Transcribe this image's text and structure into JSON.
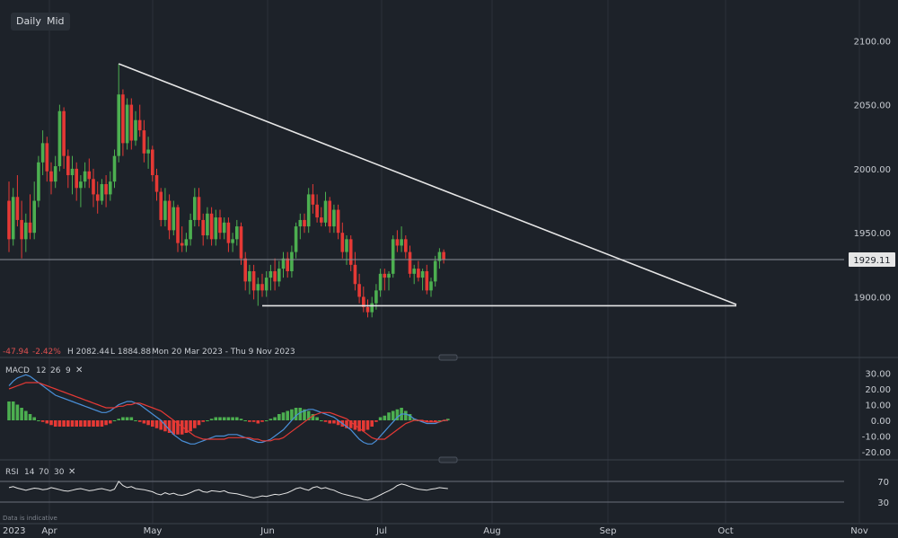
{
  "toolbar": {
    "timeframe_label": "Daily",
    "price_type_label": "Mid"
  },
  "colors": {
    "background": "#1d2229",
    "up": "#4caf50",
    "down": "#e53935",
    "trendline": "#e6e6e6",
    "macd_line": "#4a90d9",
    "signal_line": "#e53935",
    "rsi_line": "#e6e6e6",
    "axis_text": "#c8ccd2"
  },
  "info": {
    "change": "-47.94",
    "change_pct": "-2.42%",
    "high": "H 2082.44",
    "low": "L 1884.88",
    "range": "Mon 20 Mar 2023 - Thu 9 Nov 2023"
  },
  "price_label": "1929.11",
  "disclaimer": "Data is indicative",
  "macd": {
    "label": "MACD",
    "params": [
      "12",
      "26",
      "9"
    ]
  },
  "rsi": {
    "label": "RSI",
    "params": [
      "14",
      "70",
      "30"
    ]
  },
  "chart_data": [
    {
      "type": "candlestick",
      "y_ticks": [
        1900,
        1950,
        2000,
        2050,
        2100
      ],
      "ylim": [
        1860,
        2130
      ],
      "x_ticks": [
        "Apr",
        "May",
        "Jun",
        "Jul",
        "Aug",
        "Sep",
        "Oct",
        "Nov"
      ],
      "x_year_label": "2023",
      "last_price": 1929.11,
      "candles": [
        {
          "o": 1975,
          "h": 1990,
          "l": 1935,
          "c": 1945
        },
        {
          "o": 1945,
          "h": 1985,
          "l": 1940,
          "c": 1978
        },
        {
          "o": 1978,
          "h": 1995,
          "l": 1955,
          "c": 1960
        },
        {
          "o": 1960,
          "h": 1975,
          "l": 1930,
          "c": 1945
        },
        {
          "o": 1945,
          "h": 1965,
          "l": 1935,
          "c": 1958
        },
        {
          "o": 1958,
          "h": 1980,
          "l": 1945,
          "c": 1950
        },
        {
          "o": 1950,
          "h": 1990,
          "l": 1945,
          "c": 1975
        },
        {
          "o": 1975,
          "h": 2010,
          "l": 1970,
          "c": 2005
        },
        {
          "o": 2005,
          "h": 2030,
          "l": 1995,
          "c": 2020
        },
        {
          "o": 2020,
          "h": 2025,
          "l": 1990,
          "c": 1998
        },
        {
          "o": 1998,
          "h": 2005,
          "l": 1980,
          "c": 1990
        },
        {
          "o": 1990,
          "h": 2010,
          "l": 1985,
          "c": 2002
        },
        {
          "o": 2002,
          "h": 2050,
          "l": 1998,
          "c": 2045
        },
        {
          "o": 2045,
          "h": 2048,
          "l": 2000,
          "c": 2010
        },
        {
          "o": 2010,
          "h": 2015,
          "l": 1985,
          "c": 1995
        },
        {
          "o": 1995,
          "h": 2010,
          "l": 1980,
          "c": 2000
        },
        {
          "o": 2000,
          "h": 2005,
          "l": 1975,
          "c": 1985
        },
        {
          "o": 1985,
          "h": 1995,
          "l": 1970,
          "c": 1990
        },
        {
          "o": 1990,
          "h": 2005,
          "l": 1985,
          "c": 1998
        },
        {
          "o": 1998,
          "h": 2008,
          "l": 1985,
          "c": 1992
        },
        {
          "o": 1992,
          "h": 2000,
          "l": 1970,
          "c": 1980
        },
        {
          "o": 1980,
          "h": 1990,
          "l": 1965,
          "c": 1975
        },
        {
          "o": 1975,
          "h": 1992,
          "l": 1972,
          "c": 1988
        },
        {
          "o": 1988,
          "h": 1995,
          "l": 1970,
          "c": 1980
        },
        {
          "o": 1980,
          "h": 1998,
          "l": 1975,
          "c": 1990
        },
        {
          "o": 1990,
          "h": 2015,
          "l": 1985,
          "c": 2010
        },
        {
          "o": 2010,
          "h": 2082,
          "l": 2005,
          "c": 2058
        },
        {
          "o": 2058,
          "h": 2062,
          "l": 2010,
          "c": 2020
        },
        {
          "o": 2020,
          "h": 2055,
          "l": 2015,
          "c": 2050
        },
        {
          "o": 2050,
          "h": 2055,
          "l": 2015,
          "c": 2022
        },
        {
          "o": 2022,
          "h": 2045,
          "l": 2018,
          "c": 2038
        },
        {
          "o": 2038,
          "h": 2050,
          "l": 2025,
          "c": 2030
        },
        {
          "o": 2030,
          "h": 2038,
          "l": 2005,
          "c": 2012
        },
        {
          "o": 2012,
          "h": 2025,
          "l": 2000,
          "c": 2015
        },
        {
          "o": 2015,
          "h": 2018,
          "l": 1990,
          "c": 1995
        },
        {
          "o": 1995,
          "h": 2000,
          "l": 1975,
          "c": 1982
        },
        {
          "o": 1982,
          "h": 1985,
          "l": 1955,
          "c": 1960
        },
        {
          "o": 1960,
          "h": 1985,
          "l": 1955,
          "c": 1975
        },
        {
          "o": 1975,
          "h": 1980,
          "l": 1945,
          "c": 1952
        },
        {
          "o": 1952,
          "h": 1975,
          "l": 1948,
          "c": 1970
        },
        {
          "o": 1970,
          "h": 1972,
          "l": 1935,
          "c": 1942
        },
        {
          "o": 1942,
          "h": 1955,
          "l": 1935,
          "c": 1940
        },
        {
          "o": 1940,
          "h": 1950,
          "l": 1935,
          "c": 1945
        },
        {
          "o": 1945,
          "h": 1965,
          "l": 1940,
          "c": 1960
        },
        {
          "o": 1960,
          "h": 1985,
          "l": 1955,
          "c": 1978
        },
        {
          "o": 1978,
          "h": 1985,
          "l": 1955,
          "c": 1960
        },
        {
          "o": 1960,
          "h": 1965,
          "l": 1940,
          "c": 1948
        },
        {
          "o": 1948,
          "h": 1970,
          "l": 1945,
          "c": 1965
        },
        {
          "o": 1965,
          "h": 1970,
          "l": 1940,
          "c": 1945
        },
        {
          "o": 1945,
          "h": 1968,
          "l": 1940,
          "c": 1962
        },
        {
          "o": 1962,
          "h": 1968,
          "l": 1945,
          "c": 1950
        },
        {
          "o": 1950,
          "h": 1962,
          "l": 1945,
          "c": 1958
        },
        {
          "o": 1958,
          "h": 1962,
          "l": 1935,
          "c": 1942
        },
        {
          "o": 1942,
          "h": 1950,
          "l": 1935,
          "c": 1945
        },
        {
          "o": 1945,
          "h": 1960,
          "l": 1940,
          "c": 1955
        },
        {
          "o": 1955,
          "h": 1958,
          "l": 1925,
          "c": 1930
        },
        {
          "o": 1930,
          "h": 1935,
          "l": 1905,
          "c": 1912
        },
        {
          "o": 1912,
          "h": 1925,
          "l": 1902,
          "c": 1920
        },
        {
          "o": 1920,
          "h": 1925,
          "l": 1898,
          "c": 1905
        },
        {
          "o": 1905,
          "h": 1915,
          "l": 1893,
          "c": 1910
        },
        {
          "o": 1910,
          "h": 1918,
          "l": 1900,
          "c": 1905
        },
        {
          "o": 1905,
          "h": 1920,
          "l": 1900,
          "c": 1915
        },
        {
          "o": 1915,
          "h": 1925,
          "l": 1905,
          "c": 1920
        },
        {
          "o": 1920,
          "h": 1930,
          "l": 1905,
          "c": 1912
        },
        {
          "o": 1912,
          "h": 1928,
          "l": 1908,
          "c": 1922
        },
        {
          "o": 1922,
          "h": 1935,
          "l": 1915,
          "c": 1930
        },
        {
          "o": 1930,
          "h": 1935,
          "l": 1915,
          "c": 1920
        },
        {
          "o": 1920,
          "h": 1940,
          "l": 1915,
          "c": 1935
        },
        {
          "o": 1935,
          "h": 1958,
          "l": 1930,
          "c": 1955
        },
        {
          "o": 1955,
          "h": 1965,
          "l": 1945,
          "c": 1960
        },
        {
          "o": 1960,
          "h": 1965,
          "l": 1950,
          "c": 1955
        },
        {
          "o": 1955,
          "h": 1985,
          "l": 1950,
          "c": 1980
        },
        {
          "o": 1980,
          "h": 1988,
          "l": 1965,
          "c": 1972
        },
        {
          "o": 1972,
          "h": 1980,
          "l": 1958,
          "c": 1962
        },
        {
          "o": 1962,
          "h": 1970,
          "l": 1955,
          "c": 1958
        },
        {
          "o": 1958,
          "h": 1982,
          "l": 1955,
          "c": 1975
        },
        {
          "o": 1975,
          "h": 1978,
          "l": 1950,
          "c": 1955
        },
        {
          "o": 1955,
          "h": 1972,
          "l": 1950,
          "c": 1968
        },
        {
          "o": 1968,
          "h": 1972,
          "l": 1945,
          "c": 1950
        },
        {
          "o": 1950,
          "h": 1958,
          "l": 1930,
          "c": 1935
        },
        {
          "o": 1935,
          "h": 1948,
          "l": 1925,
          "c": 1945
        },
        {
          "o": 1945,
          "h": 1948,
          "l": 1920,
          "c": 1925
        },
        {
          "o": 1925,
          "h": 1935,
          "l": 1905,
          "c": 1910
        },
        {
          "o": 1910,
          "h": 1918,
          "l": 1895,
          "c": 1900
        },
        {
          "o": 1900,
          "h": 1908,
          "l": 1888,
          "c": 1892
        },
        {
          "o": 1892,
          "h": 1898,
          "l": 1884,
          "c": 1888
        },
        {
          "o": 1888,
          "h": 1900,
          "l": 1884,
          "c": 1895
        },
        {
          "o": 1895,
          "h": 1910,
          "l": 1890,
          "c": 1905
        },
        {
          "o": 1905,
          "h": 1922,
          "l": 1900,
          "c": 1918
        },
        {
          "o": 1918,
          "h": 1922,
          "l": 1905,
          "c": 1915
        },
        {
          "o": 1915,
          "h": 1920,
          "l": 1905,
          "c": 1918
        },
        {
          "o": 1918,
          "h": 1948,
          "l": 1915,
          "c": 1945
        },
        {
          "o": 1945,
          "h": 1952,
          "l": 1935,
          "c": 1940
        },
        {
          "o": 1940,
          "h": 1955,
          "l": 1935,
          "c": 1945
        },
        {
          "o": 1945,
          "h": 1948,
          "l": 1930,
          "c": 1935
        },
        {
          "o": 1935,
          "h": 1940,
          "l": 1915,
          "c": 1918
        },
        {
          "o": 1918,
          "h": 1925,
          "l": 1910,
          "c": 1922
        },
        {
          "o": 1922,
          "h": 1928,
          "l": 1912,
          "c": 1915
        },
        {
          "o": 1915,
          "h": 1922,
          "l": 1905,
          "c": 1920
        },
        {
          "o": 1920,
          "h": 1925,
          "l": 1902,
          "c": 1905
        },
        {
          "o": 1905,
          "h": 1915,
          "l": 1900,
          "c": 1912
        },
        {
          "o": 1912,
          "h": 1932,
          "l": 1908,
          "c": 1928
        },
        {
          "o": 1928,
          "h": 1938,
          "l": 1922,
          "c": 1935
        },
        {
          "o": 1935,
          "h": 1937,
          "l": 1926,
          "c": 1929
        }
      ],
      "trendlines": [
        {
          "from_index": 26,
          "from_value": 2082,
          "to_label": "Oct",
          "to_offset_days": 10,
          "to_value": 1894
        },
        {
          "from_index": 60,
          "from_value": 1893,
          "to_label": "Oct",
          "to_offset_days": 10,
          "to_value": 1893
        }
      ],
      "horizontal_line": 1929.11
    },
    {
      "type": "macd",
      "y_ticks": [
        30,
        20,
        10,
        0,
        -10,
        -20
      ],
      "ylim": [
        -25,
        35
      ],
      "macd": [
        22,
        25,
        27,
        28,
        29,
        28,
        26,
        24,
        22,
        20,
        18,
        16,
        15,
        14,
        13,
        12,
        11,
        10,
        9,
        8,
        7,
        6,
        5,
        5,
        6,
        8,
        10,
        11,
        12,
        12,
        11,
        10,
        8,
        6,
        4,
        2,
        0,
        -3,
        -6,
        -9,
        -11,
        -13,
        -14,
        -15,
        -15,
        -14,
        -13,
        -12,
        -11,
        -10,
        -10,
        -10,
        -9,
        -9,
        -9,
        -10,
        -11,
        -12,
        -13,
        -14,
        -14,
        -13,
        -12,
        -10,
        -8,
        -6,
        -3,
        0,
        3,
        5,
        6,
        7,
        7,
        6,
        5,
        4,
        3,
        2,
        0,
        -2,
        -4,
        -6,
        -9,
        -12,
        -14,
        -15,
        -15,
        -13,
        -10,
        -7,
        -4,
        -1,
        2,
        4,
        4,
        3,
        1,
        0,
        -1,
        -2,
        -2,
        -2,
        -1,
        0,
        0
      ],
      "signal": [
        20,
        21,
        22,
        23,
        24,
        24,
        24,
        24,
        23,
        22,
        21,
        20,
        19,
        18,
        17,
        16,
        15,
        14,
        13,
        12,
        11,
        10,
        9,
        8,
        8,
        8,
        9,
        9,
        10,
        10,
        11,
        11,
        10,
        9,
        8,
        7,
        6,
        4,
        2,
        0,
        -2,
        -4,
        -6,
        -8,
        -10,
        -11,
        -12,
        -12,
        -12,
        -12,
        -12,
        -12,
        -11,
        -11,
        -11,
        -11,
        -11,
        -11,
        -12,
        -12,
        -13,
        -13,
        -13,
        -12,
        -12,
        -11,
        -9,
        -7,
        -5,
        -3,
        -1,
        1,
        3,
        4,
        5,
        5,
        5,
        4,
        3,
        2,
        1,
        -1,
        -3,
        -5,
        -7,
        -9,
        -11,
        -12,
        -12,
        -12,
        -10,
        -8,
        -6,
        -4,
        -2,
        -1,
        0,
        0,
        0,
        -1,
        -1,
        -1,
        -1,
        0,
        0
      ],
      "histogram": [
        12,
        12,
        10,
        8,
        6,
        4,
        2,
        0,
        -1,
        -2,
        -3,
        -4,
        -4,
        -4,
        -4,
        -4,
        -4,
        -4,
        -4,
        -4,
        -4,
        -4,
        -4,
        -3,
        -2,
        0,
        1,
        2,
        2,
        2,
        0,
        -1,
        -2,
        -3,
        -4,
        -5,
        -6,
        -7,
        -8,
        -9,
        -9,
        -9,
        -8,
        -7,
        -5,
        -3,
        -1,
        0,
        1,
        2,
        2,
        2,
        2,
        2,
        2,
        1,
        0,
        -1,
        -1,
        -2,
        -1,
        0,
        1,
        2,
        4,
        5,
        6,
        7,
        8,
        8,
        7,
        6,
        4,
        2,
        0,
        -1,
        -2,
        -2,
        -3,
        -4,
        -5,
        -5,
        -6,
        -7,
        -7,
        -6,
        -4,
        -1,
        2,
        3,
        5,
        6,
        7,
        8,
        6,
        4,
        1,
        0,
        -1,
        -1,
        -1,
        -1,
        0,
        0,
        1
      ]
    },
    {
      "type": "rsi",
      "y_ticks": [
        70,
        30
      ],
      "ylim": [
        20,
        80
      ],
      "values": [
        58,
        60,
        57,
        55,
        53,
        55,
        57,
        56,
        54,
        55,
        58,
        56,
        54,
        52,
        51,
        53,
        55,
        56,
        54,
        52,
        53,
        55,
        56,
        54,
        52,
        55,
        70,
        62,
        58,
        60,
        56,
        55,
        54,
        52,
        50,
        46,
        44,
        48,
        45,
        47,
        44,
        43,
        45,
        48,
        52,
        54,
        50,
        49,
        52,
        51,
        50,
        52,
        48,
        47,
        46,
        44,
        42,
        40,
        38,
        40,
        42,
        41,
        43,
        45,
        44,
        46,
        48,
        52,
        56,
        58,
        55,
        53,
        58,
        60,
        56,
        58,
        55,
        53,
        49,
        46,
        44,
        42,
        40,
        38,
        35,
        34,
        36,
        40,
        44,
        48,
        52,
        56,
        62,
        65,
        63,
        60,
        57,
        55,
        54,
        53,
        55,
        56,
        58,
        57,
        56
      ]
    }
  ]
}
